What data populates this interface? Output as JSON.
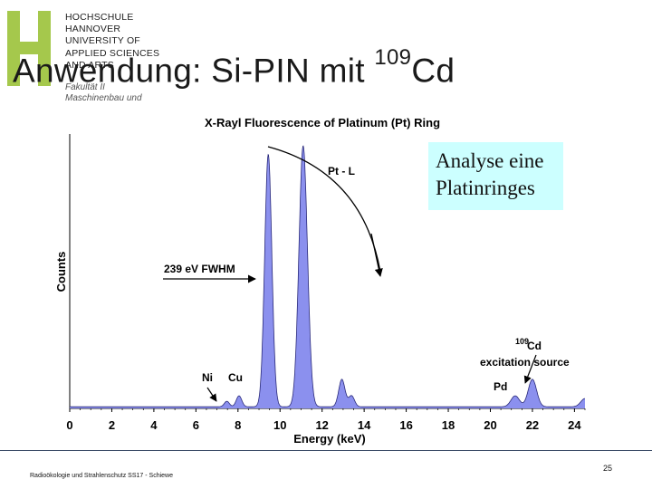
{
  "logo": {
    "lines": [
      "HOCHSCHULE",
      "HANNOVER",
      "UNIVERSITY OF",
      "APPLIED SCIENCES",
      "AND ARTS"
    ],
    "faculty": [
      "Fakultät II",
      "Maschinenbau und"
    ],
    "color": "#a5c84c"
  },
  "slide": {
    "title_main": "Anwendung: Si-PIN mit ",
    "title_sup": "109",
    "title_end": "Cd",
    "callout": "Analyse eine Platinringes",
    "callout_color": "#ccffff",
    "footer": "Radioökologie und Strahlenschutz SS17 - Schiewe",
    "page_number": "25"
  },
  "chart_data": {
    "type": "line",
    "title": "X-Rayl Fluorescence of Platinum (Pt) Ring",
    "xlabel": "Energy (keV)",
    "ylabel": "Counts",
    "xlim": [
      0,
      24.5
    ],
    "ylim": [
      0,
      1.0
    ],
    "x_ticks": [
      "0",
      "2",
      "4",
      "6",
      "8",
      "10",
      "12",
      "14",
      "16",
      "18",
      "20",
      "22",
      "24"
    ],
    "fill_color": "#8b90ee",
    "series": [
      {
        "peaks": [
          {
            "center": 7.47,
            "height": 0.02,
            "width": 0.12
          },
          {
            "center": 8.05,
            "height": 0.04,
            "width": 0.13
          },
          {
            "center": 9.44,
            "height": 0.92,
            "width": 0.17
          },
          {
            "center": 11.07,
            "height": 0.82,
            "width": 0.19
          },
          {
            "center": 11.25,
            "height": 0.2,
            "width": 0.18
          },
          {
            "center": 12.94,
            "height": 0.1,
            "width": 0.15
          },
          {
            "center": 13.4,
            "height": 0.04,
            "width": 0.14
          },
          {
            "center": 21.18,
            "height": 0.04,
            "width": 0.2
          },
          {
            "center": 22.0,
            "height": 0.1,
            "width": 0.2
          },
          {
            "center": 24.5,
            "height": 0.03,
            "width": 0.2
          }
        ]
      }
    ],
    "annotations": {
      "pt_l": "Pt - L",
      "fwhm": "239 eV FWHM",
      "ni": "Ni",
      "cu": "Cu",
      "cd_sup": "109",
      "cd": "Cd",
      "excitation": "excitation source",
      "pd": "Pd"
    }
  }
}
